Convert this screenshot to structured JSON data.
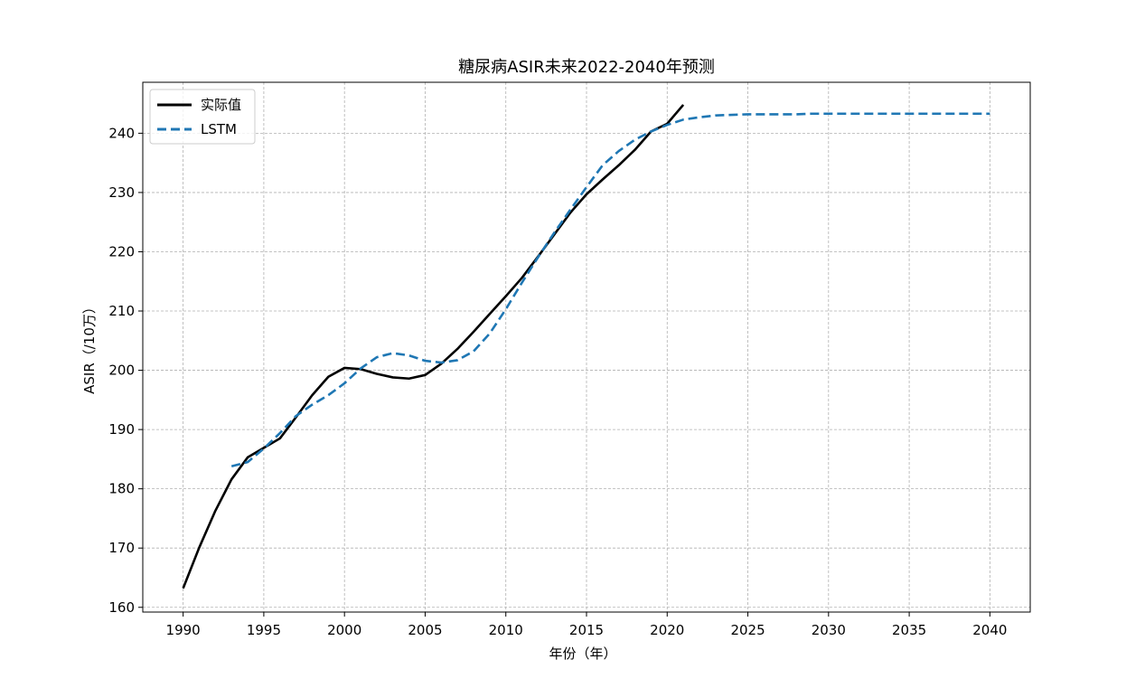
{
  "chart_data": {
    "type": "line",
    "title": "糖尿病ASIR未来2022-2040年预测",
    "xlabel": "年份（年）",
    "ylabel": "ASIR（/10万）",
    "xlim": [
      1987.5,
      2042.5
    ],
    "ylim": [
      159.2,
      248.6
    ],
    "xticks": [
      1990,
      1995,
      2000,
      2005,
      2010,
      2015,
      2020,
      2025,
      2030,
      2035,
      2040
    ],
    "yticks": [
      160,
      170,
      180,
      190,
      200,
      210,
      220,
      230,
      240
    ],
    "grid": true,
    "legend_position": "upper-left",
    "series": [
      {
        "name": "实际值",
        "color": "#000000",
        "style": "solid",
        "x": [
          1990,
          1991,
          1992,
          1993,
          1994,
          1995,
          1996,
          1997,
          1998,
          1999,
          2000,
          2001,
          2002,
          2003,
          2004,
          2005,
          2006,
          2007,
          2008,
          2009,
          2010,
          2011,
          2012,
          2013,
          2014,
          2015,
          2016,
          2017,
          2018,
          2019,
          2020,
          2021
        ],
        "y": [
          163.2,
          170.1,
          176.3,
          181.6,
          185.3,
          186.9,
          188.5,
          192.1,
          195.8,
          198.9,
          200.4,
          200.2,
          199.4,
          198.8,
          198.6,
          199.2,
          201.1,
          203.6,
          206.5,
          209.5,
          212.5,
          215.6,
          219.2,
          222.9,
          226.6,
          229.7,
          232.2,
          234.6,
          237.2,
          240.3,
          241.6,
          244.8
        ]
      },
      {
        "name": "LSTM",
        "color": "#1f77b4",
        "style": "dashed",
        "x": [
          1993,
          1994,
          1995,
          1996,
          1997,
          1998,
          1999,
          2000,
          2001,
          2002,
          2003,
          2004,
          2005,
          2006,
          2007,
          2008,
          2009,
          2010,
          2011,
          2012,
          2013,
          2014,
          2015,
          2016,
          2017,
          2018,
          2019,
          2020,
          2021,
          2022,
          2023,
          2024,
          2025,
          2026,
          2027,
          2028,
          2029,
          2030,
          2031,
          2032,
          2033,
          2034,
          2035,
          2036,
          2037,
          2038,
          2039,
          2040
        ],
        "y": [
          183.8,
          184.5,
          186.8,
          189.4,
          192.3,
          194.2,
          195.8,
          197.8,
          200.3,
          202.2,
          202.9,
          202.5,
          201.6,
          201.3,
          201.7,
          203.2,
          206.2,
          210.3,
          214.8,
          219.1,
          223.2,
          227.1,
          230.9,
          234.6,
          237.0,
          238.9,
          240.3,
          241.4,
          242.3,
          242.7,
          243.0,
          243.1,
          243.2,
          243.2,
          243.2,
          243.2,
          243.3,
          243.3,
          243.3,
          243.3,
          243.3,
          243.3,
          243.3,
          243.3,
          243.3,
          243.3,
          243.3,
          243.3
        ]
      }
    ]
  }
}
